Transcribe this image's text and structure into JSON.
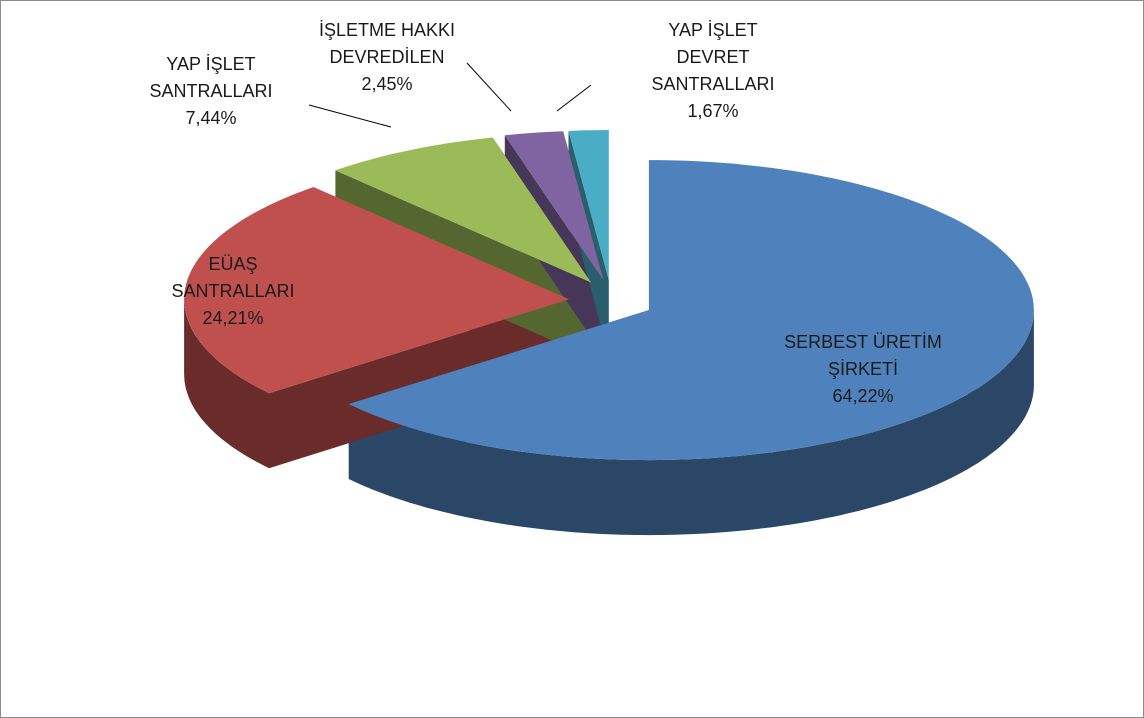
{
  "chart_data": {
    "type": "pie",
    "categories": [
      "SERBEST ÜRETİM ŞİRKETİ",
      "EÜAŞ SANTRALLARI",
      "YAP İŞLET SANTRALLARI",
      "İŞLETME HAKKI DEVREDİLEN",
      "YAP İŞLET DEVRET SANTRALLARI"
    ],
    "values": [
      64.22,
      24.21,
      7.44,
      2.45,
      1.67
    ],
    "value_labels": [
      "64,22%",
      "24,21%",
      "7,44%",
      "2,45%",
      "1,67%"
    ],
    "colors": [
      "#4f81bd",
      "#c0504d",
      "#9bbb59",
      "#8064a2",
      "#4bacc6"
    ]
  }
}
